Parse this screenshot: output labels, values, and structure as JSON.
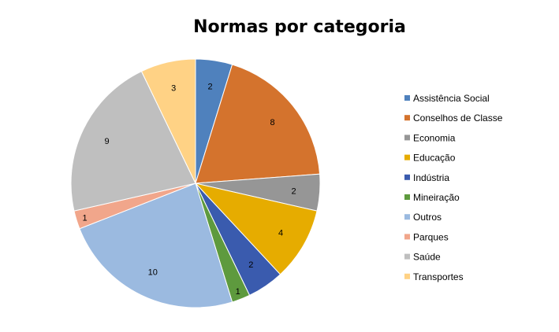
{
  "chart_data": {
    "type": "pie",
    "title": "Normas por categoria",
    "legend_position": "right",
    "slices": [
      {
        "label": "Assistência Social",
        "value": 2,
        "color": "#4F81BD"
      },
      {
        "label": "Conselhos de Classe",
        "value": 8,
        "color": "#D4732D"
      },
      {
        "label": "Economia",
        "value": 2,
        "color": "#969696"
      },
      {
        "label": "Educação",
        "value": 4,
        "color": "#E6AC00"
      },
      {
        "label": "Indústria",
        "value": 2,
        "color": "#3A5BAE"
      },
      {
        "label": "Mineiração",
        "value": 1,
        "color": "#5E9A3E"
      },
      {
        "label": "Outros",
        "value": 10,
        "color": "#9BBAE0"
      },
      {
        "label": "Parques",
        "value": 1,
        "color": "#F1A68B"
      },
      {
        "label": "Saúde",
        "value": 9,
        "color": "#BFBFBF"
      },
      {
        "label": "Transportes",
        "value": 3,
        "color": "#FFD285"
      }
    ]
  }
}
